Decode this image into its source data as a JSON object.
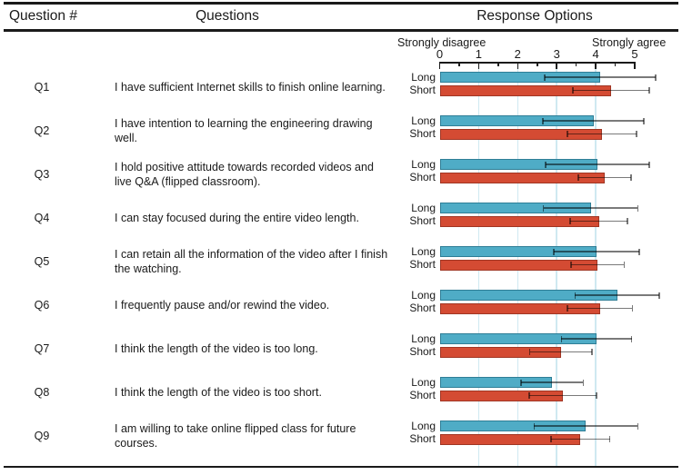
{
  "header": {
    "question_number": "Question #",
    "questions": "Questions",
    "response_options": "Response Options"
  },
  "axis": {
    "left_label": "Strongly disagree",
    "right_label": "Strongly agree",
    "tick_labels": [
      "0",
      "1",
      "2",
      "3",
      "4",
      "5"
    ],
    "min": 0,
    "max": 5,
    "gridline_values": [
      1,
      2,
      3,
      4
    ]
  },
  "colors": {
    "long_bar": "#4FACC6",
    "long_bar_border": "#2F7E96",
    "short_bar": "#D44B33",
    "short_bar_border": "#A03624",
    "gridline": "#CFE9F1",
    "error_bar": "rgba(0,0,0,0.52)",
    "rule": "#1a1a1a"
  },
  "chart_data": {
    "type": "bar",
    "orientation": "horizontal",
    "title": "Response Options",
    "xlabel_left": "Strongly disagree",
    "xlabel_right": "Strongly agree",
    "xlim": [
      0,
      5
    ],
    "grid": "vertical gridlines at 1,2,3,4",
    "legend": "row labels Long / Short beside each bar pair",
    "categories": [
      "Q1",
      "Q2",
      "Q3",
      "Q4",
      "Q5",
      "Q6",
      "Q7",
      "Q8",
      "Q9"
    ],
    "questions": [
      "I have sufficient Internet skills to finish online learning.",
      "I have intention to learning the engineering drawing well.",
      "I hold positive attitude towards recorded videos and live Q&A (flipped classroom).",
      "I can stay focused during the entire video length.",
      "I can retain all the information of the video after I finish the watching.",
      "I frequently pause and/or rewind the video.",
      "I think the length of the video is too long.",
      "I think the length of the video is too short.",
      "I am willing to take online flipped class for future courses."
    ],
    "series": [
      {
        "name": "Long",
        "values": [
          4.11,
          3.94,
          4.04,
          3.87,
          4.02,
          4.55,
          4.02,
          2.88,
          3.75
        ],
        "errors": [
          1.42,
          1.29,
          1.33,
          1.21,
          1.09,
          1.08,
          0.9,
          0.8,
          1.33
        ]
      },
      {
        "name": "Short",
        "values": [
          4.39,
          4.16,
          4.23,
          4.08,
          4.05,
          4.11,
          3.11,
          3.16,
          3.61
        ],
        "errors": [
          0.98,
          0.88,
          0.68,
          0.74,
          0.68,
          0.83,
          0.8,
          0.86,
          0.75
        ]
      }
    ]
  }
}
